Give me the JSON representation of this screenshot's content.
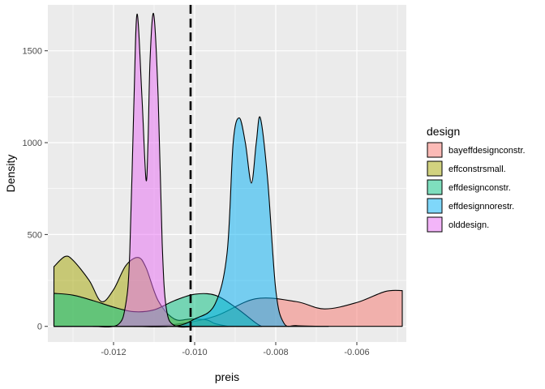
{
  "chart_data": {
    "type": "density",
    "xlabel": "preis",
    "ylabel": "Density",
    "xlim": [
      -0.01362,
      -0.00478
    ],
    "ylim": [
      -85,
      1750
    ],
    "x_ticks": [
      -0.012,
      -0.01,
      -0.008,
      -0.006
    ],
    "x_tick_labels": [
      "-0.012",
      "-0.010",
      "-0.008",
      "-0.006"
    ],
    "y_ticks": [
      0,
      500,
      1000,
      1500
    ],
    "y_tick_labels": [
      "0",
      "500",
      "1000",
      "1500"
    ],
    "grid": true,
    "vline": {
      "x": -0.0101,
      "style": "dashed"
    },
    "legend": {
      "title": "design",
      "placement": "right",
      "entries": [
        "bayeffdesignconstr.",
        "effconstrsmall.",
        "effdesignconstr.",
        "effdesignnorestr.",
        "olddesign."
      ]
    },
    "series": [
      {
        "name": "bayeffdesignconstr.",
        "color": "#F8766D",
        "x": [
          -0.01347,
          -0.0125,
          -0.0115,
          -0.0105,
          -0.0095,
          -0.0085,
          -0.0075,
          -0.0068,
          -0.006,
          -0.0053,
          -0.00488
        ],
        "y": [
          0,
          0.5,
          2,
          10,
          55,
          150,
          135,
          95,
          130,
          190,
          195
        ]
      },
      {
        "name": "effconstrsmall.",
        "color": "#A3A500",
        "x": [
          -0.01347,
          -0.0132,
          -0.013,
          -0.0126,
          -0.0123,
          -0.012,
          -0.0117,
          -0.0114,
          -0.0112,
          -0.0109,
          -0.0105,
          -0.0101,
          -0.0097,
          -0.0095,
          -0.00918
        ],
        "y": [
          325,
          380,
          360,
          250,
          135,
          200,
          330,
          375,
          320,
          140,
          40,
          40,
          35,
          15,
          0
        ]
      },
      {
        "name": "effdesignconstr.",
        "color": "#00BF7D",
        "x": [
          -0.01347,
          -0.013,
          -0.0125,
          -0.012,
          -0.0115,
          -0.011,
          -0.0105,
          -0.01,
          -0.0095,
          -0.009,
          -0.0085,
          -0.00835
        ],
        "y": [
          180,
          170,
          140,
          105,
          80,
          90,
          140,
          175,
          170,
          105,
          20,
          0
        ]
      },
      {
        "name": "effdesignnorestr.",
        "color": "#00B0F6",
        "x": [
          -0.0115,
          -0.0105,
          -0.01,
          -0.0095,
          -0.0092,
          -0.00905,
          -0.0089,
          -0.00875,
          -0.0086,
          -0.00848,
          -0.00838,
          -0.0082,
          -0.008,
          -0.0078,
          -0.0075,
          -0.007,
          -0.0067
        ],
        "y": [
          0,
          1,
          40,
          120,
          400,
          1000,
          1135,
          1000,
          780,
          1000,
          1135,
          800,
          200,
          18,
          4,
          1,
          0
        ]
      },
      {
        "name": "olddesign.",
        "color": "#E76BF3",
        "x": [
          -0.0125,
          -0.0119,
          -0.0117,
          -0.0116,
          -0.0115,
          -0.01142,
          -0.0113,
          -0.0112,
          -0.01115,
          -0.0111,
          -0.01101,
          -0.0109,
          -0.0108,
          -0.0107,
          -0.0105,
          -0.01
        ],
        "y": [
          0,
          8,
          120,
          400,
          1200,
          1700,
          1250,
          800,
          1000,
          1450,
          1700,
          1250,
          450,
          100,
          5,
          0
        ]
      }
    ]
  }
}
